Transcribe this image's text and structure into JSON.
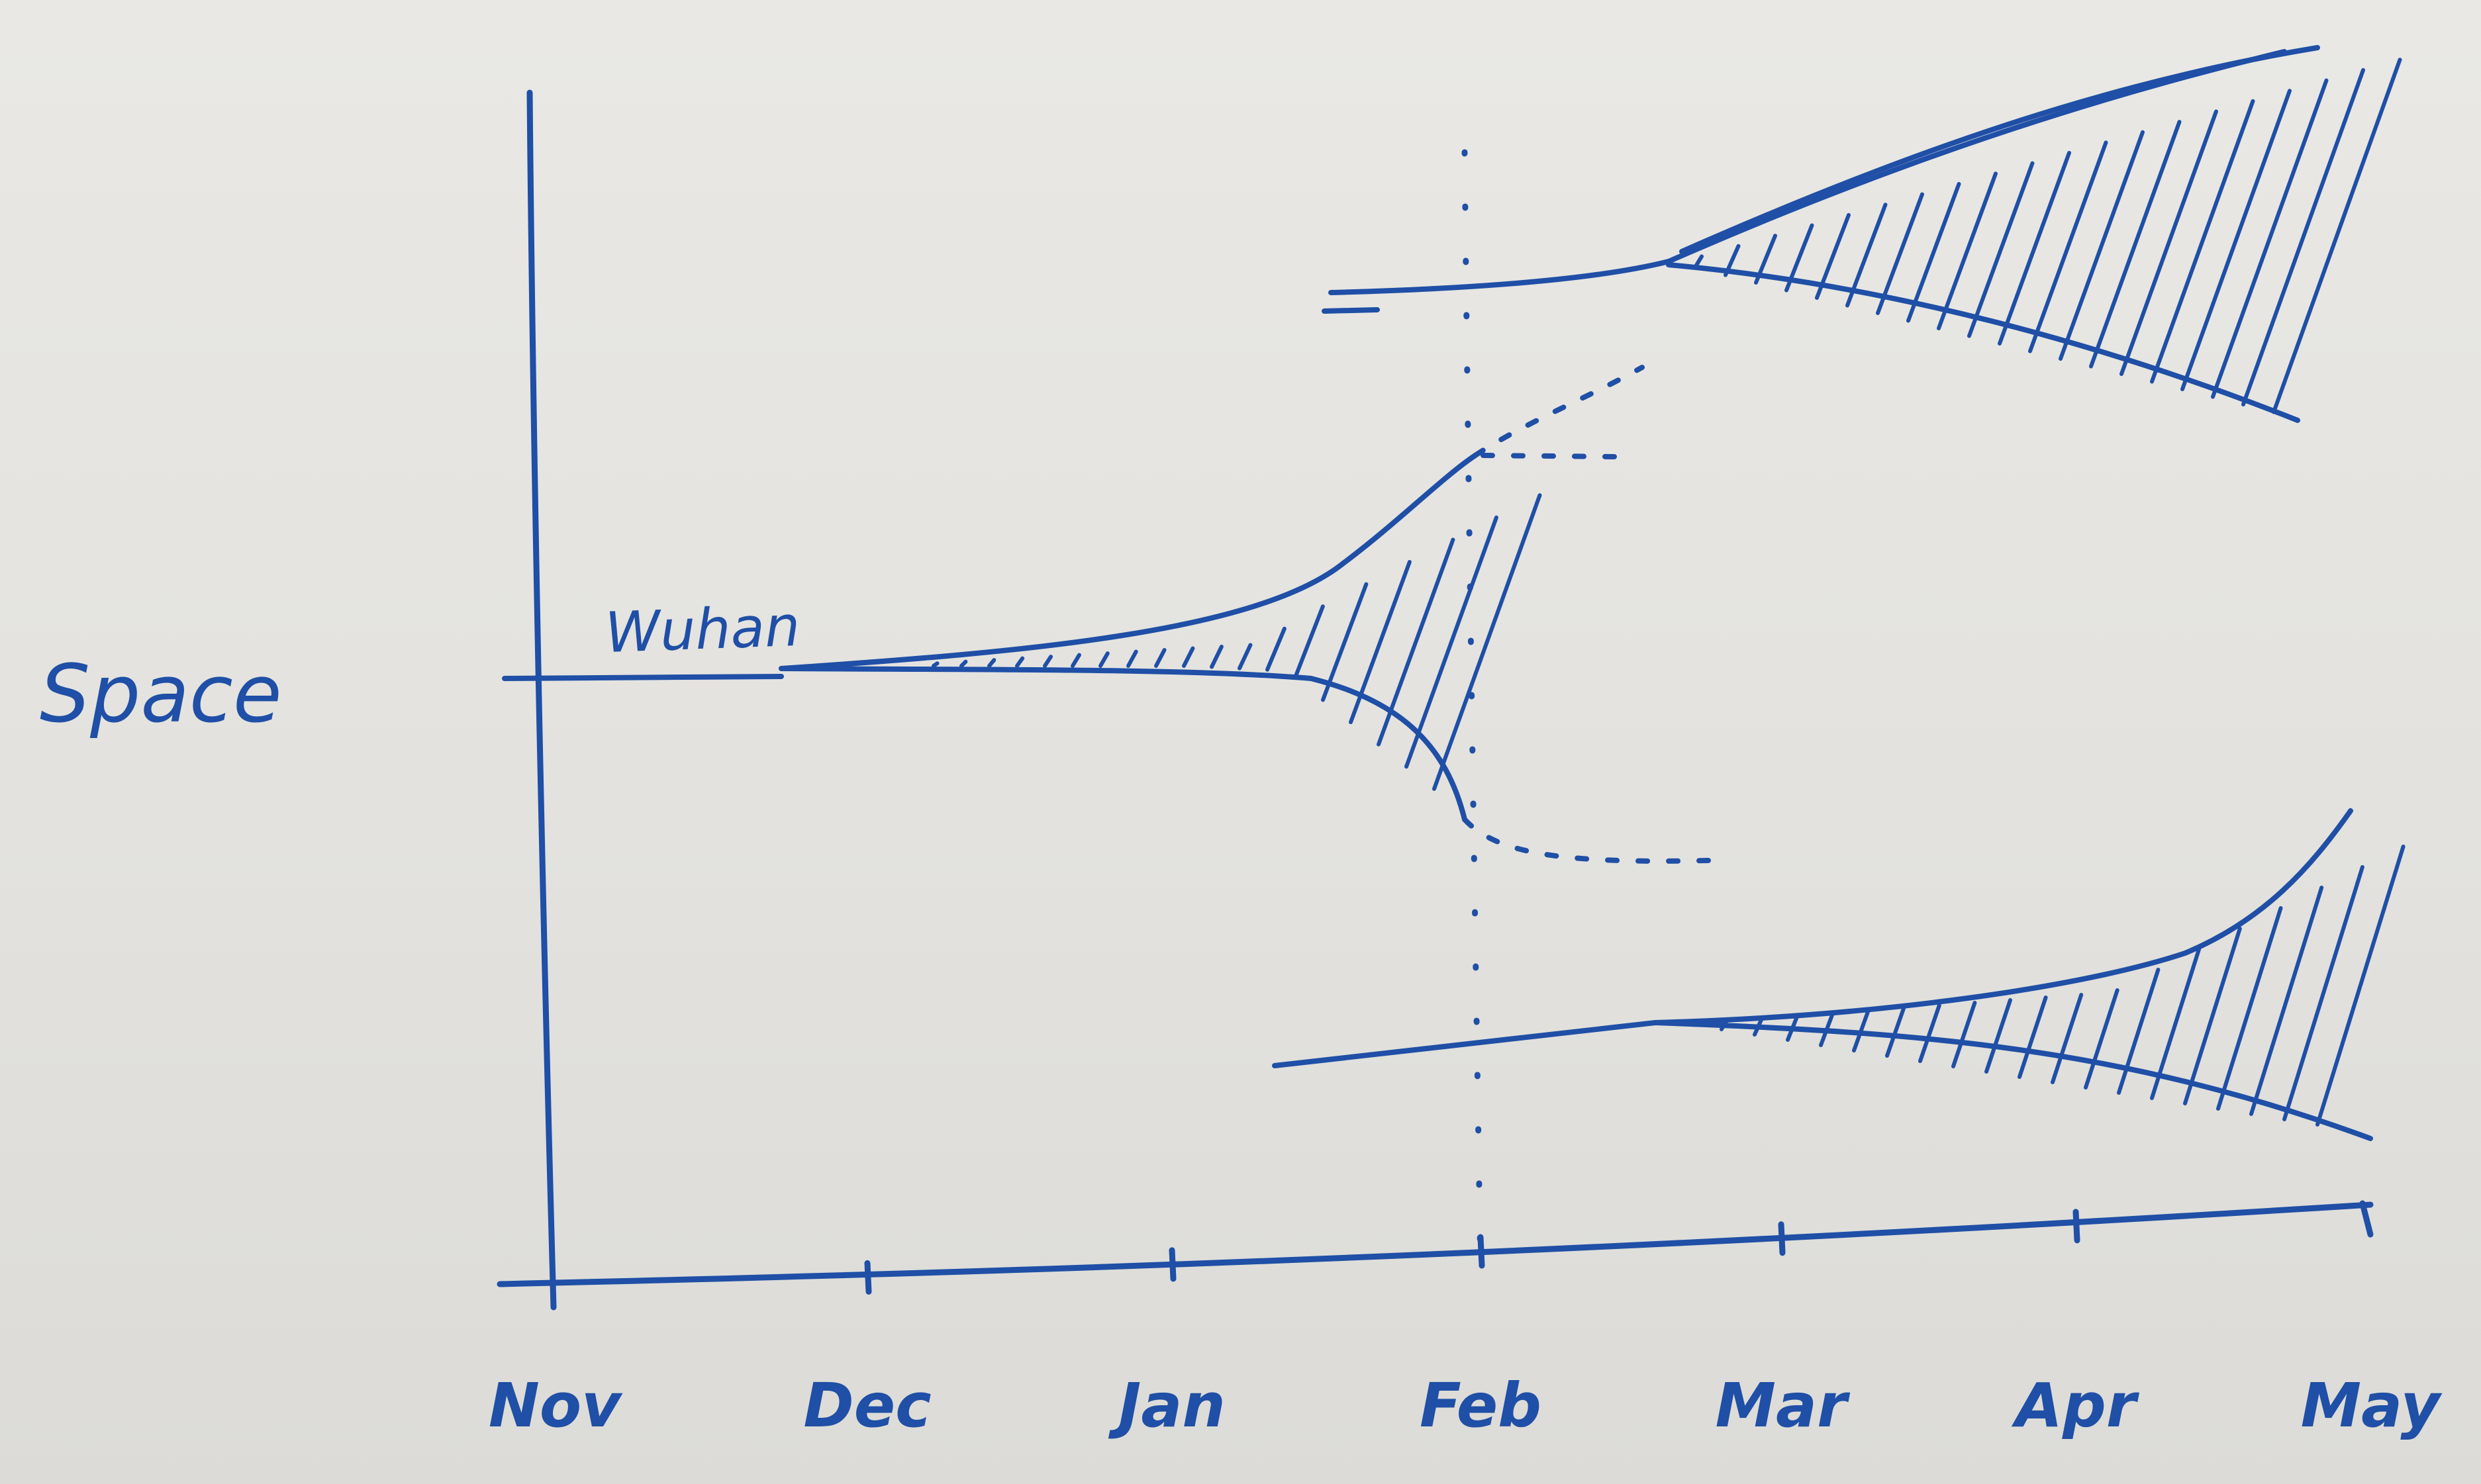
{
  "diagram": {
    "y_axis_label": "Space",
    "x_axis_months": [
      "Nov",
      "Dec",
      "Jan",
      "Feb",
      "Mar",
      "Apr",
      "May"
    ],
    "origin_label": "Wuhan",
    "ink_color": "#1f4fa6",
    "marker_month": "Feb"
  }
}
